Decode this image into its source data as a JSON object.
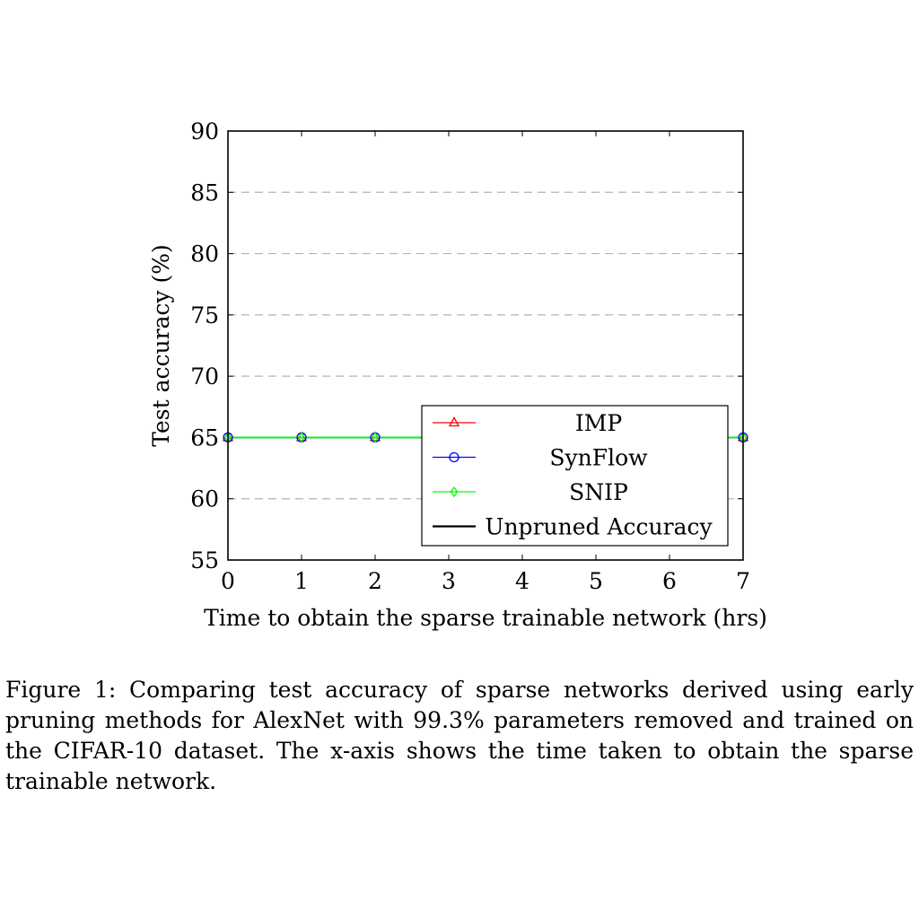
{
  "caption": "Figure 1: Comparing test accuracy of sparse networks derived using early pruning methods for AlexNet with 99.3% parameters removed and trained on the CIFAR-10 dataset. The x-axis shows the time taken to obtain the sparse trainable network.",
  "chart_data": {
    "type": "line",
    "title": "",
    "xlabel": "Time to obtain the sparse trainable network (hrs)",
    "ylabel": "Test accuracy (%)",
    "xlim": [
      0,
      7
    ],
    "ylim": [
      55,
      90
    ],
    "xticks": [
      0,
      1,
      2,
      3,
      4,
      5,
      6,
      7
    ],
    "yticks": [
      55,
      60,
      65,
      70,
      75,
      80,
      85,
      90
    ],
    "grid": "horizontal dashed",
    "legend_position": "bottom-right",
    "series": [
      {
        "name": "IMP",
        "color": "#ff0000",
        "marker": "triangle",
        "x": [
          0,
          1,
          2,
          3,
          4,
          5,
          6,
          7
        ],
        "y": [
          65,
          65,
          65,
          65,
          65,
          65,
          65,
          65
        ]
      },
      {
        "name": "SynFlow",
        "color": "#0000ff",
        "marker": "circle",
        "x": [
          0,
          1,
          2,
          3,
          4,
          5,
          6,
          7
        ],
        "y": [
          65,
          65,
          65,
          65,
          65,
          65,
          65,
          65
        ]
      },
      {
        "name": "SNIP",
        "color": "#00ff00",
        "marker": "diamond",
        "x": [
          0,
          1,
          2,
          3,
          4,
          5,
          6,
          7
        ],
        "y": [
          65,
          65,
          65,
          65,
          65,
          65,
          65,
          65
        ]
      },
      {
        "name": "Unpruned Accuracy",
        "color": "#000000",
        "marker": "none",
        "x": [],
        "y": []
      }
    ]
  }
}
